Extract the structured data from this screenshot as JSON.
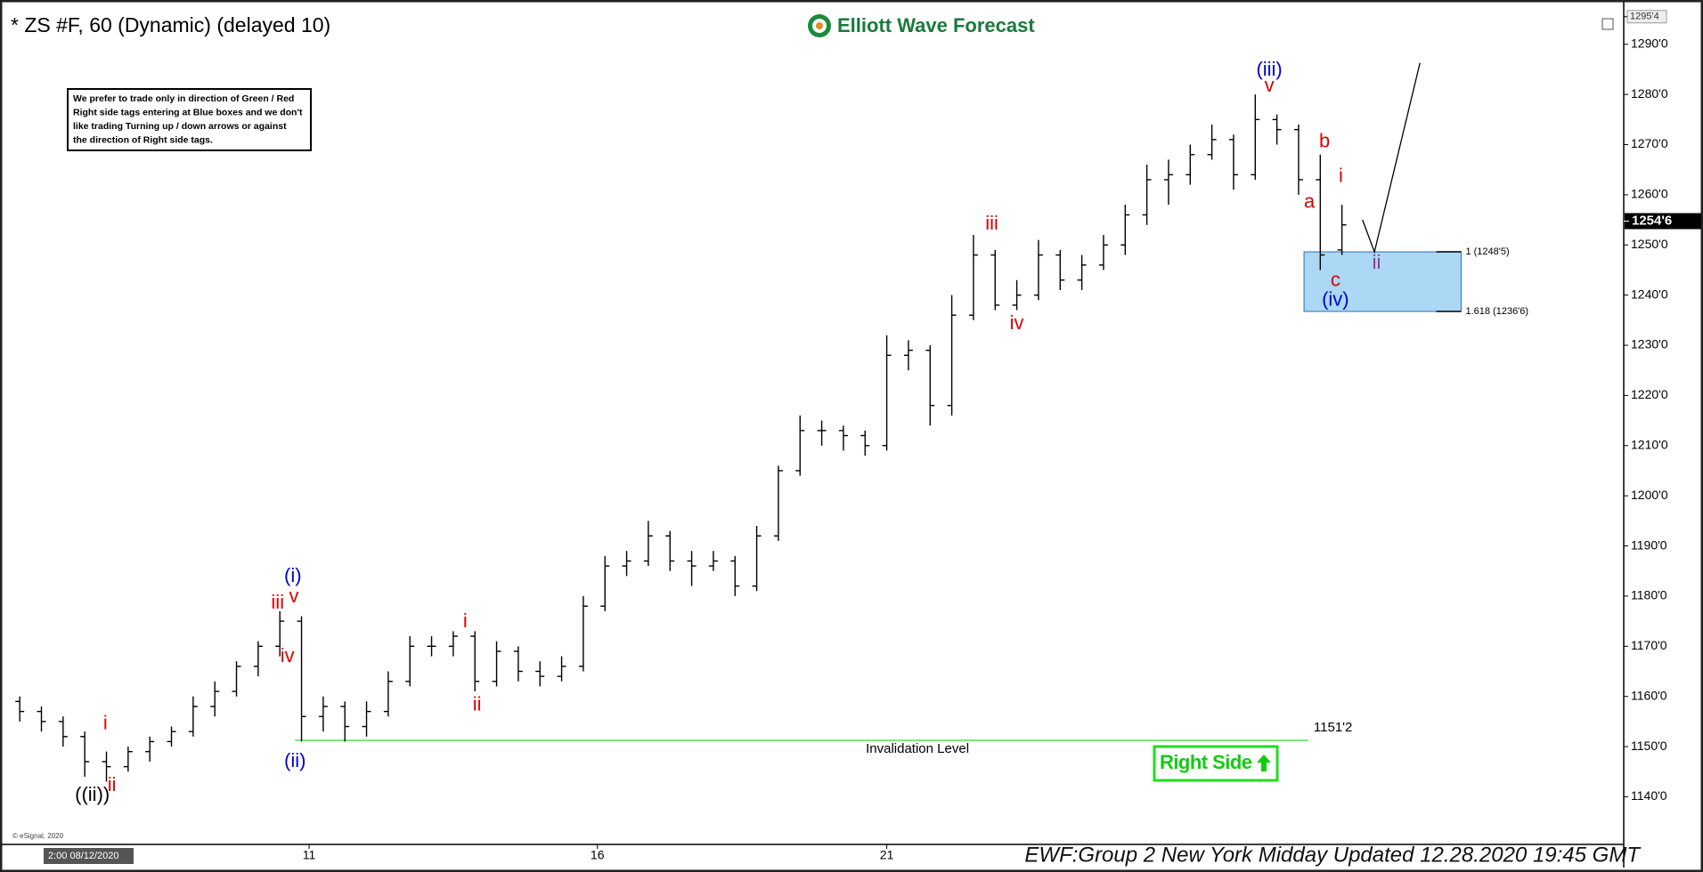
{
  "chart_data": {
    "type": "ohlc",
    "title": "* ZS #F, 60 (Dynamic) (delayed 10)",
    "logo": "Elliott Wave Forecast",
    "note": [
      "We prefer to trade only in direction of Green / Red",
      "Right side tags entering at Blue boxes and we don't",
      "like trading Turning up / down arrows or against",
      "the direction of Right side tags."
    ],
    "color": "#000000",
    "open": [
      1159,
      1157,
      1155,
      1152,
      1147,
      1146,
      1149,
      1151,
      1153,
      1158,
      1161,
      1166,
      1170,
      1175,
      1156,
      1158,
      1154,
      1157,
      1163,
      1170,
      1170,
      1172,
      1163,
      1169,
      1165,
      1164,
      1166,
      1178,
      1186,
      1187,
      1192,
      1187,
      1186,
      1187,
      1182,
      1192,
      1205,
      1213,
      1213,
      1212,
      1210,
      1228,
      1229,
      1218,
      1236,
      1248,
      1238,
      1240,
      1248,
      1243,
      1246,
      1250,
      1256,
      1263,
      1264,
      1268,
      1271,
      1264,
      1275,
      1273,
      1263,
      1249
    ],
    "high": [
      1160,
      1158,
      1156,
      1153,
      1149,
      1150,
      1152,
      1154,
      1160,
      1163,
      1167,
      1171,
      1177,
      1176,
      1160,
      1159,
      1159,
      1165,
      1172,
      1172,
      1173,
      1173,
      1171,
      1170,
      1167,
      1168,
      1180,
      1188,
      1189,
      1195,
      1193,
      1189,
      1189,
      1188,
      1194,
      1206,
      1216,
      1215,
      1214,
      1213,
      1232,
      1231,
      1230,
      1240,
      1252,
      1249,
      1243,
      1251,
      1249,
      1248,
      1252,
      1258,
      1266,
      1267,
      1270,
      1274,
      1272,
      1280,
      1276,
      1274,
      1268,
      1258
    ],
    "low": [
      1155,
      1153,
      1150,
      1144,
      1143,
      1145,
      1147,
      1150,
      1152,
      1156,
      1160,
      1164,
      1168,
      1151,
      1153,
      1151,
      1152,
      1156,
      1162,
      1168,
      1168,
      1161,
      1162,
      1163,
      1162,
      1163,
      1165,
      1177,
      1184,
      1186,
      1185,
      1182,
      1185,
      1180,
      1181,
      1191,
      1204,
      1210,
      1209,
      1208,
      1209,
      1225,
      1214,
      1216,
      1235,
      1237,
      1237,
      1239,
      1241,
      1241,
      1245,
      1248,
      1254,
      1258,
      1262,
      1267,
      1261,
      1263,
      1270,
      1260,
      1245,
      1248
    ],
    "close": [
      1157,
      1155,
      1152,
      1147,
      1146,
      1149,
      1151,
      1153,
      1158,
      1161,
      1166,
      1170,
      1175,
      1156,
      1158,
      1154,
      1157,
      1163,
      1170,
      1170,
      1172,
      1163,
      1169,
      1165,
      1164,
      1166,
      1178,
      1186,
      1187,
      1192,
      1187,
      1186,
      1187,
      1182,
      1192,
      1205,
      1213,
      1213,
      1212,
      1210,
      1228,
      1229,
      1218,
      1236,
      1248,
      1238,
      1240,
      1248,
      1243,
      1246,
      1250,
      1256,
      1263,
      1264,
      1268,
      1271,
      1264,
      1275,
      1273,
      1263,
      1248,
      1254
    ],
    "xlim": [
      -0.5,
      74
    ],
    "xticks": [
      {
        "value": 13.35,
        "label": "11"
      },
      {
        "value": 26.65,
        "label": "16"
      },
      {
        "value": 40,
        "label": "21"
      }
    ],
    "ylim": [
      1130.5,
      1296.7
    ],
    "yticks": [
      {
        "value": 1140,
        "label": "1140'0"
      },
      {
        "value": 1150,
        "label": "1150'0"
      },
      {
        "value": 1160,
        "label": "1160'0"
      },
      {
        "value": 1170,
        "label": "1170'0"
      },
      {
        "value": 1180,
        "label": "1180'0"
      },
      {
        "value": 1190,
        "label": "1190'0"
      },
      {
        "value": 1200,
        "label": "1200'0"
      },
      {
        "value": 1210,
        "label": "1210'0"
      },
      {
        "value": 1220,
        "label": "1220'0"
      },
      {
        "value": 1230,
        "label": "1230'0"
      },
      {
        "value": 1240,
        "label": "1240'0"
      },
      {
        "value": 1250,
        "label": "1250'0"
      },
      {
        "value": 1260,
        "label": "1260'0"
      },
      {
        "value": 1270,
        "label": "1270'0"
      },
      {
        "value": 1280,
        "label": "1280'0"
      },
      {
        "value": 1290,
        "label": "1290'0"
      }
    ],
    "axis_top": {
      "value": 1295.5,
      "label": "1295'4"
    },
    "last_price": {
      "value": 1254.75,
      "label": "1254'6"
    },
    "zone": {
      "x": [
        59.25,
        66.5
      ],
      "y": [
        1236.75,
        1248.625
      ],
      "color": "#aad8f5",
      "labels": [
        {
          "value": 1248.625,
          "label": "1 (1248'5)"
        },
        {
          "value": 1236.75,
          "label": "1.618 (1236'6)"
        }
      ]
    },
    "invalidation": {
      "value": 1151.25,
      "label": "1151'2",
      "text": "Invalidation Level",
      "x": [
        12.7,
        59.45
      ],
      "color": "#33dd33"
    },
    "projection": {
      "x": [
        61.95,
        62.5,
        64.6
      ],
      "y": [
        1255,
        1248.6,
        1286.3
      ]
    },
    "annotations": [
      {
        "text": "((ii))",
        "x": 3.35,
        "y": 1140.2,
        "color": "#000000"
      },
      {
        "text": "i",
        "x": 3.95,
        "y": 1154.5,
        "color": "#dd0000"
      },
      {
        "text": "ii",
        "x": 4.25,
        "y": 1142.2,
        "color": "#dd0000"
      },
      {
        "text": "iii",
        "x": 11.9,
        "y": 1178.5,
        "color": "#dd0000"
      },
      {
        "text": "iv",
        "x": 12.35,
        "y": 1167.9,
        "color": "#dd0000"
      },
      {
        "text": "v",
        "x": 12.65,
        "y": 1179.8,
        "color": "#dd0000"
      },
      {
        "text": "(i)",
        "x": 12.6,
        "y": 1183.9,
        "color": "#0000cc"
      },
      {
        "text": "(ii)",
        "x": 12.7,
        "y": 1147,
        "color": "#0000cc"
      },
      {
        "text": "i",
        "x": 20.55,
        "y": 1174.8,
        "color": "#dd0000"
      },
      {
        "text": "ii",
        "x": 21.1,
        "y": 1158.2,
        "color": "#dd0000"
      },
      {
        "text": "iii",
        "x": 44.85,
        "y": 1254.1,
        "color": "#dd0000"
      },
      {
        "text": "iv",
        "x": 46,
        "y": 1234.2,
        "color": "#dd0000"
      },
      {
        "text": "(iii)",
        "x": 57.65,
        "y": 1284.8,
        "color": "#0000cc"
      },
      {
        "text": "v",
        "x": 57.65,
        "y": 1281.6,
        "color": "#dd0000"
      },
      {
        "text": "b",
        "x": 60.2,
        "y": 1270.5,
        "color": "#dd0000"
      },
      {
        "text": "a",
        "x": 59.5,
        "y": 1258.4,
        "color": "#dd0000"
      },
      {
        "text": "i",
        "x": 60.95,
        "y": 1263.6,
        "color": "#dd0000"
      },
      {
        "text": "c",
        "x": 60.7,
        "y": 1242.8,
        "color": "#dd0000"
      },
      {
        "text": "(iv)",
        "x": 60.7,
        "y": 1238.9,
        "color": "#0000cc"
      },
      {
        "text": "ii",
        "x": 62.6,
        "y": 1246.3,
        "color": "#993399"
      }
    ],
    "tag": "Right Side",
    "footer": "EWF:Group 2 New York Midday Updated 12.28.2020 19:45 GMT",
    "copyright": "© eSignal, 2020",
    "start_time": "2:00 08/12/2020"
  }
}
